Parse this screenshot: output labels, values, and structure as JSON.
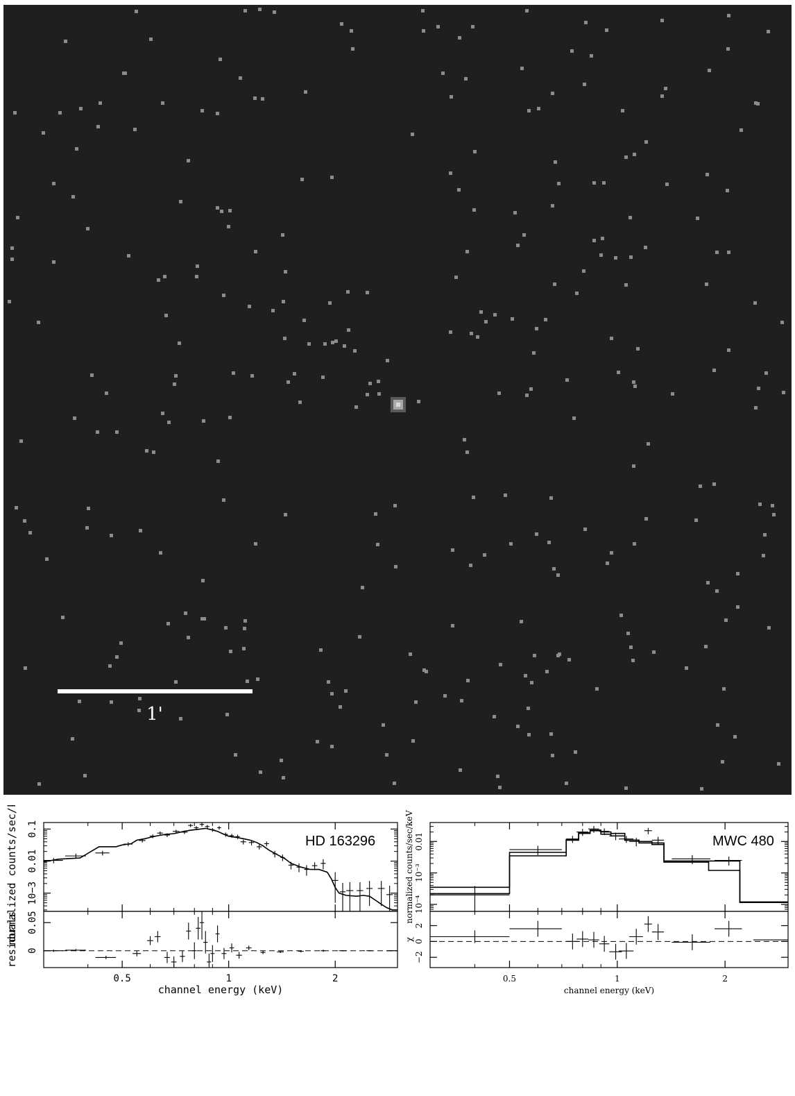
{
  "image_panel": {
    "scale_label": "1'",
    "background": "#1f1f1f",
    "pixel_color": "#8c8c8c",
    "source_color": "#d9d9d9"
  },
  "chart_data": [
    {
      "type": "scatter",
      "title": "HD 163296",
      "xlabel": "channel energy (keV)",
      "ylabel": "normalized counts/sec/keV",
      "residual_label": "residuals",
      "x_scale": "log",
      "y_scale": "log",
      "xlim": [
        0.3,
        3.0
      ],
      "ylim": [
        0.00027,
        0.16
      ],
      "residual_ylim": [
        -0.03,
        0.07
      ],
      "x_ticks": [
        {
          "value": 0.5,
          "label": "0.5"
        },
        {
          "value": 1,
          "label": "1"
        },
        {
          "value": 2,
          "label": "2"
        }
      ],
      "y_ticks": [
        {
          "value": 0.1,
          "label": "0.1"
        },
        {
          "value": 0.01,
          "label": "0.01"
        },
        {
          "value": 0.001,
          "label": "10−3"
        }
      ],
      "residual_ticks": [
        {
          "value": 0.05,
          "label": "0.05"
        },
        {
          "value": 0,
          "label": "0"
        }
      ],
      "model": [
        [
          0.3,
          0.0095
        ],
        [
          0.33,
          0.0115
        ],
        [
          0.38,
          0.0125
        ],
        [
          0.43,
          0.028
        ],
        [
          0.46,
          0.028
        ],
        [
          0.48,
          0.028
        ],
        [
          0.5,
          0.032
        ],
        [
          0.53,
          0.035
        ],
        [
          0.55,
          0.045
        ],
        [
          0.58,
          0.05
        ],
        [
          0.6,
          0.055
        ],
        [
          0.63,
          0.062
        ],
        [
          0.66,
          0.068
        ],
        [
          0.7,
          0.072
        ],
        [
          0.74,
          0.083
        ],
        [
          0.78,
          0.092
        ],
        [
          0.82,
          0.098
        ],
        [
          0.86,
          0.105
        ],
        [
          0.9,
          0.094
        ],
        [
          0.93,
          0.085
        ],
        [
          0.96,
          0.072
        ],
        [
          1.0,
          0.06
        ],
        [
          1.05,
          0.055
        ],
        [
          1.1,
          0.05
        ],
        [
          1.15,
          0.045
        ],
        [
          1.2,
          0.038
        ],
        [
          1.25,
          0.03
        ],
        [
          1.3,
          0.022
        ],
        [
          1.37,
          0.016
        ],
        [
          1.44,
          0.012
        ],
        [
          1.5,
          0.0085
        ],
        [
          1.6,
          0.0065
        ],
        [
          1.7,
          0.0055
        ],
        [
          1.8,
          0.0055
        ],
        [
          1.9,
          0.0045
        ],
        [
          1.95,
          0.0028
        ],
        [
          2.0,
          0.0015
        ],
        [
          2.05,
          0.001
        ],
        [
          2.15,
          0.00085
        ],
        [
          2.3,
          0.0008
        ],
        [
          2.4,
          0.00085
        ],
        [
          2.5,
          0.0008
        ],
        [
          2.6,
          0.0006
        ],
        [
          2.7,
          0.00045
        ],
        [
          2.8,
          0.00035
        ],
        [
          2.9,
          0.0003
        ],
        [
          3.0,
          0.0003
        ]
      ],
      "points": [
        {
          "x": 0.32,
          "y": 0.0105,
          "xerr": 0.02,
          "yerr": 0.002
        },
        {
          "x": 0.37,
          "y": 0.0145,
          "xerr": 0.025,
          "yerr": 0.0025
        },
        {
          "x": 0.44,
          "y": 0.018,
          "xerr": 0.02,
          "yerr": 0.003
        },
        {
          "x": 0.52,
          "y": 0.034,
          "xerr": 0.015,
          "yerr": 0.005
        },
        {
          "x": 0.57,
          "y": 0.044,
          "xerr": 0.012,
          "yerr": 0.006
        },
        {
          "x": 0.61,
          "y": 0.06,
          "xerr": 0.012,
          "yerr": 0.008
        },
        {
          "x": 0.64,
          "y": 0.075,
          "xerr": 0.012,
          "yerr": 0.009
        },
        {
          "x": 0.67,
          "y": 0.065,
          "xerr": 0.012,
          "yerr": 0.009
        },
        {
          "x": 0.71,
          "y": 0.085,
          "xerr": 0.015,
          "yerr": 0.01
        },
        {
          "x": 0.75,
          "y": 0.08,
          "xerr": 0.015,
          "yerr": 0.01
        },
        {
          "x": 0.78,
          "y": 0.13,
          "xerr": 0.012,
          "yerr": 0.015
        },
        {
          "x": 0.81,
          "y": 0.11,
          "xerr": 0.012,
          "yerr": 0.013
        },
        {
          "x": 0.84,
          "y": 0.14,
          "xerr": 0.012,
          "yerr": 0.02
        },
        {
          "x": 0.87,
          "y": 0.12,
          "xerr": 0.012,
          "yerr": 0.015
        },
        {
          "x": 0.9,
          "y": 0.095,
          "xerr": 0.012,
          "yerr": 0.012
        },
        {
          "x": 0.94,
          "y": 0.11,
          "xerr": 0.012,
          "yerr": 0.014
        },
        {
          "x": 0.98,
          "y": 0.068,
          "xerr": 0.015,
          "yerr": 0.01
        },
        {
          "x": 1.02,
          "y": 0.062,
          "xerr": 0.015,
          "yerr": 0.009
        },
        {
          "x": 1.06,
          "y": 0.058,
          "xerr": 0.015,
          "yerr": 0.009
        },
        {
          "x": 1.1,
          "y": 0.04,
          "xerr": 0.02,
          "yerr": 0.007
        },
        {
          "x": 1.16,
          "y": 0.038,
          "xerr": 0.02,
          "yerr": 0.007
        },
        {
          "x": 1.22,
          "y": 0.028,
          "xerr": 0.02,
          "yerr": 0.005
        },
        {
          "x": 1.28,
          "y": 0.035,
          "xerr": 0.02,
          "yerr": 0.006
        },
        {
          "x": 1.35,
          "y": 0.017,
          "xerr": 0.02,
          "yerr": 0.004
        },
        {
          "x": 1.42,
          "y": 0.013,
          "xerr": 0.02,
          "yerr": 0.003
        },
        {
          "x": 1.5,
          "y": 0.0075,
          "xerr": 0.025,
          "yerr": 0.002
        },
        {
          "x": 1.58,
          "y": 0.0065,
          "xerr": 0.025,
          "yerr": 0.002
        },
        {
          "x": 1.66,
          "y": 0.0055,
          "xerr": 0.025,
          "yerr": 0.002
        },
        {
          "x": 1.75,
          "y": 0.0072,
          "xerr": 0.03,
          "yerr": 0.002
        },
        {
          "x": 1.85,
          "y": 0.0085,
          "xerr": 0.03,
          "yerr": 0.003
        },
        {
          "x": 2.0,
          "y": 0.0025,
          "xerr": 0.04,
          "yerr": 0.002
        },
        {
          "x": 2.1,
          "y": 0.0011,
          "xerr": 0.04,
          "yerr": 0.001
        },
        {
          "x": 2.2,
          "y": 0.0012,
          "xerr": 0.05,
          "yerr": 0.001
        },
        {
          "x": 2.35,
          "y": 0.0012,
          "xerr": 0.05,
          "yerr": 0.001
        },
        {
          "x": 2.5,
          "y": 0.0014,
          "xerr": 0.05,
          "yerr": 0.001
        },
        {
          "x": 2.7,
          "y": 0.0014,
          "xerr": 0.06,
          "yerr": 0.001
        },
        {
          "x": 2.85,
          "y": 0.0009,
          "xerr": 0.06,
          "yerr": 0.0008
        }
      ],
      "residuals": [
        {
          "x": 0.32,
          "y": 0.0,
          "xerr": 0.02,
          "yerr": 0.002
        },
        {
          "x": 0.37,
          "y": 0.001,
          "xerr": 0.025,
          "yerr": 0.002
        },
        {
          "x": 0.45,
          "y": -0.012,
          "xerr": 0.03,
          "yerr": 0.003
        },
        {
          "x": 0.55,
          "y": -0.005,
          "xerr": 0.015,
          "yerr": 0.005
        },
        {
          "x": 0.6,
          "y": 0.018,
          "xerr": 0.012,
          "yerr": 0.008
        },
        {
          "x": 0.63,
          "y": 0.025,
          "xerr": 0.012,
          "yerr": 0.01
        },
        {
          "x": 0.67,
          "y": -0.012,
          "xerr": 0.012,
          "yerr": 0.01
        },
        {
          "x": 0.7,
          "y": -0.02,
          "xerr": 0.012,
          "yerr": 0.01
        },
        {
          "x": 0.74,
          "y": -0.01,
          "xerr": 0.012,
          "yerr": 0.01
        },
        {
          "x": 0.77,
          "y": 0.035,
          "xerr": 0.012,
          "yerr": 0.015
        },
        {
          "x": 0.8,
          "y": 0.0,
          "xerr": 0.012,
          "yerr": 0.015
        },
        {
          "x": 0.82,
          "y": 0.04,
          "xerr": 0.012,
          "yerr": 0.02
        },
        {
          "x": 0.84,
          "y": 0.05,
          "xerr": 0.012,
          "yerr": 0.03
        },
        {
          "x": 0.86,
          "y": 0.015,
          "xerr": 0.012,
          "yerr": 0.02
        },
        {
          "x": 0.88,
          "y": -0.02,
          "xerr": 0.012,
          "yerr": 0.015
        },
        {
          "x": 0.9,
          "y": -0.005,
          "xerr": 0.012,
          "yerr": 0.015
        },
        {
          "x": 0.93,
          "y": 0.03,
          "xerr": 0.012,
          "yerr": 0.015
        },
        {
          "x": 0.97,
          "y": -0.005,
          "xerr": 0.015,
          "yerr": 0.01
        },
        {
          "x": 1.02,
          "y": 0.005,
          "xerr": 0.015,
          "yerr": 0.008
        },
        {
          "x": 1.07,
          "y": -0.008,
          "xerr": 0.02,
          "yerr": 0.006
        },
        {
          "x": 1.14,
          "y": 0.005,
          "xerr": 0.02,
          "yerr": 0.004
        },
        {
          "x": 1.25,
          "y": -0.003,
          "xerr": 0.02,
          "yerr": 0.003
        },
        {
          "x": 1.4,
          "y": -0.002,
          "xerr": 0.03,
          "yerr": 0.002
        },
        {
          "x": 1.6,
          "y": -0.001,
          "xerr": 0.03,
          "yerr": 0.002
        },
        {
          "x": 1.85,
          "y": 0.0,
          "xerr": 0.03,
          "yerr": 0.002
        },
        {
          "x": 2.1,
          "y": 0.0,
          "xerr": 0.05,
          "yerr": 0.001
        },
        {
          "x": 2.5,
          "y": 0.0,
          "xerr": 0.05,
          "yerr": 0.001
        },
        {
          "x": 2.85,
          "y": 0.0,
          "xerr": 0.06,
          "yerr": 0.001
        }
      ]
    },
    {
      "type": "scatter",
      "title": "MWC 480",
      "xlabel": "channel energy (keV)",
      "ylabel": "normalized counts/sec/keV",
      "x_scale": "log",
      "y_scale": "log",
      "xlim": [
        0.3,
        3.0
      ],
      "ylim": [
        6e-05,
        0.04
      ],
      "residual_ylim": [
        -3.3,
        3.8
      ],
      "x_ticks": [
        {
          "value": 0.5,
          "label": "0.5"
        },
        {
          "value": 1,
          "label": "1"
        },
        {
          "value": 2,
          "label": "2"
        }
      ],
      "y_ticks": [
        {
          "value": 0.01,
          "label": "0.01"
        },
        {
          "value": 0.001,
          "label": "10⁻³"
        },
        {
          "value": 0.0001,
          "label": "10⁻⁴"
        }
      ],
      "residual_ticks": [
        {
          "value": 2,
          "label": "2"
        },
        {
          "value": 0,
          "label": "0"
        },
        {
          "value": -2,
          "label": "−2"
        }
      ],
      "residual_label": "χ",
      "model_a": [
        [
          0.3,
          0.00035
        ],
        [
          0.5,
          0.00035
        ],
        [
          0.5,
          0.0045
        ],
        [
          0.72,
          0.0045
        ],
        [
          0.72,
          0.011
        ],
        [
          0.78,
          0.011
        ],
        [
          0.78,
          0.018
        ],
        [
          0.84,
          0.018
        ],
        [
          0.84,
          0.022
        ],
        [
          0.9,
          0.022
        ],
        [
          0.9,
          0.017
        ],
        [
          0.96,
          0.017
        ],
        [
          0.96,
          0.015
        ],
        [
          1.05,
          0.015
        ],
        [
          1.05,
          0.011
        ],
        [
          1.15,
          0.011
        ],
        [
          1.15,
          0.01
        ],
        [
          1.25,
          0.01
        ],
        [
          1.25,
          0.009
        ],
        [
          1.35,
          0.009
        ],
        [
          1.35,
          0.0022
        ],
        [
          1.8,
          0.0022
        ],
        [
          1.8,
          0.0012
        ],
        [
          2.2,
          0.0012
        ],
        [
          2.2,
          0.00012
        ],
        [
          3.0,
          0.00012
        ]
      ],
      "model_b": [
        [
          0.3,
          0.00022
        ],
        [
          0.5,
          0.00022
        ],
        [
          0.5,
          0.0035
        ],
        [
          0.72,
          0.0035
        ],
        [
          0.72,
          0.0115
        ],
        [
          0.78,
          0.0115
        ],
        [
          0.78,
          0.019
        ],
        [
          0.84,
          0.019
        ],
        [
          0.84,
          0.023
        ],
        [
          0.9,
          0.023
        ],
        [
          0.9,
          0.02
        ],
        [
          0.96,
          0.02
        ],
        [
          0.96,
          0.018
        ],
        [
          1.05,
          0.018
        ],
        [
          1.05,
          0.011
        ],
        [
          1.15,
          0.011
        ],
        [
          1.15,
          0.009
        ],
        [
          1.25,
          0.009
        ],
        [
          1.25,
          0.008
        ],
        [
          1.35,
          0.008
        ],
        [
          1.35,
          0.0024
        ],
        [
          1.8,
          0.0024
        ],
        [
          1.8,
          0.0024
        ],
        [
          2.2,
          0.0024
        ],
        [
          2.2,
          0.000115
        ],
        [
          3.0,
          0.000115
        ]
      ],
      "points": [
        {
          "x": 0.4,
          "y": 0.0002,
          "xerr": 0.1,
          "yerr": 0.00018
        },
        {
          "x": 0.6,
          "y": 0.0055,
          "xerr": 0.1,
          "yerr": 0.0018
        },
        {
          "x": 0.75,
          "y": 0.012,
          "xerr": 0.03,
          "yerr": 0.003
        },
        {
          "x": 0.8,
          "y": 0.02,
          "xerr": 0.03,
          "yerr": 0.005
        },
        {
          "x": 0.86,
          "y": 0.025,
          "xerr": 0.03,
          "yerr": 0.006
        },
        {
          "x": 0.92,
          "y": 0.021,
          "xerr": 0.03,
          "yerr": 0.005
        },
        {
          "x": 0.99,
          "y": 0.015,
          "xerr": 0.04,
          "yerr": 0.004
        },
        {
          "x": 1.06,
          "y": 0.012,
          "xerr": 0.05,
          "yerr": 0.003
        },
        {
          "x": 1.13,
          "y": 0.01,
          "xerr": 0.05,
          "yerr": 0.003
        },
        {
          "x": 1.22,
          "y": 0.022,
          "xerr": 0.03,
          "yerr": 0.005
        },
        {
          "x": 1.3,
          "y": 0.011,
          "xerr": 0.05,
          "yerr": 0.003
        },
        {
          "x": 1.62,
          "y": 0.0028,
          "xerr": 0.2,
          "yerr": 0.0009
        },
        {
          "x": 2.05,
          "y": 0.0025,
          "xerr": 0.18,
          "yerr": 0.0008
        }
      ],
      "residuals": [
        {
          "x": 0.4,
          "y": 0.6,
          "xerr": 0.1,
          "yerr": 0.8
        },
        {
          "x": 0.6,
          "y": 1.6,
          "xerr": 0.1,
          "yerr": 1.0
        },
        {
          "x": 0.75,
          "y": 0.0,
          "xerr": 0.03,
          "yerr": 1.0
        },
        {
          "x": 0.8,
          "y": 0.3,
          "xerr": 0.03,
          "yerr": 1.0
        },
        {
          "x": 0.86,
          "y": 0.2,
          "xerr": 0.03,
          "yerr": 1.0
        },
        {
          "x": 0.92,
          "y": -0.3,
          "xerr": 0.03,
          "yerr": 1.0
        },
        {
          "x": 0.99,
          "y": -1.3,
          "xerr": 0.04,
          "yerr": 1.0
        },
        {
          "x": 1.06,
          "y": -1.2,
          "xerr": 0.05,
          "yerr": 1.0
        },
        {
          "x": 1.13,
          "y": 0.6,
          "xerr": 0.05,
          "yerr": 1.0
        },
        {
          "x": 1.22,
          "y": 2.2,
          "xerr": 0.03,
          "yerr": 1.0
        },
        {
          "x": 1.3,
          "y": 1.2,
          "xerr": 0.05,
          "yerr": 1.0
        },
        {
          "x": 1.62,
          "y": -0.1,
          "xerr": 0.2,
          "yerr": 1.0
        },
        {
          "x": 2.05,
          "y": 1.6,
          "xerr": 0.18,
          "yerr": 1.0
        },
        {
          "x": 2.7,
          "y": 0.2,
          "xerr": 0.3,
          "yerr": 0.0
        }
      ]
    }
  ]
}
